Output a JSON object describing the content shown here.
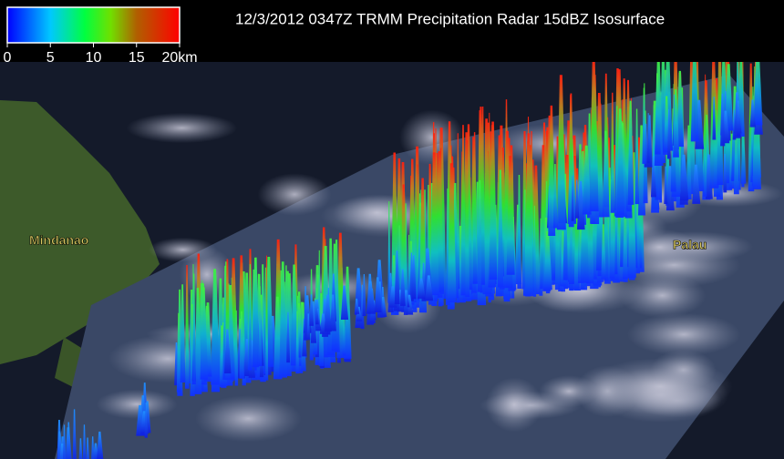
{
  "header": {
    "title": "12/3/2012 0347Z TRMM Precipitation Radar 15dBZ Isosurface"
  },
  "colorbar": {
    "range": [
      0,
      20
    ],
    "ticks": [
      0,
      5,
      10,
      15,
      {
        "value": 20,
        "label": "20km"
      }
    ]
  },
  "map_labels": [
    "Mindanao",
    "Palau"
  ]
}
